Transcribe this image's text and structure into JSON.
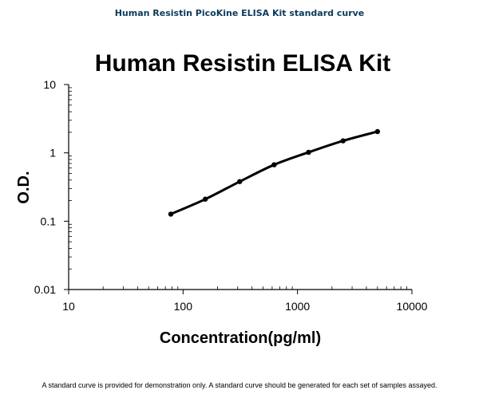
{
  "header": {
    "title": "Human Resistin PicoKine ELISA Kit standard curve"
  },
  "footer": {
    "note": "A standard curve is provided for demonstration only. A standard curve should be generated for each set of samples assayed."
  },
  "chart_data": {
    "type": "line",
    "title": "Human Resistin ELISA Kit",
    "xlabel": "Concentration(pg/ml)",
    "ylabel": "O.D.",
    "xscale": "log",
    "yscale": "log",
    "xlim": [
      10,
      10000
    ],
    "ylim": [
      0.01,
      10
    ],
    "x_ticks": [
      "10",
      "100",
      "1000",
      "10000"
    ],
    "y_ticks": [
      "0.01",
      "0.1",
      "1",
      "10"
    ],
    "grid": false,
    "legend": "none",
    "series": [
      {
        "x": [
          78.13,
          156.25,
          312.5,
          625,
          1250,
          2500,
          5000
        ],
        "values": [
          0.127,
          0.21,
          0.38,
          0.67,
          1.02,
          1.5,
          2.05
        ],
        "color": "#000000"
      }
    ]
  }
}
